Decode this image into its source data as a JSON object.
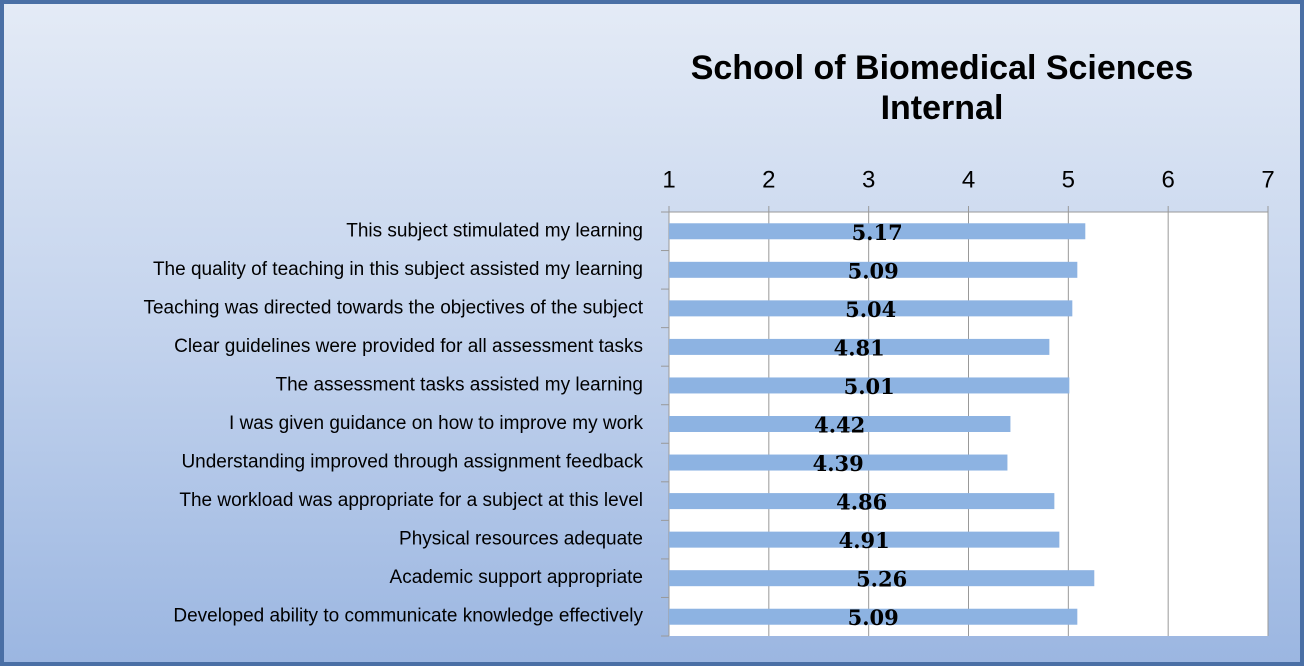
{
  "chart_data": {
    "type": "bar",
    "orientation": "horizontal",
    "title": [
      "School of Biomedical Sciences",
      "Internal"
    ],
    "categories": [
      "This subject stimulated my learning",
      "The quality of teaching in this subject assisted my learning",
      "Teaching was directed towards the objectives of the subject",
      "Clear guidelines were provided for all assessment tasks",
      "The assessment tasks assisted my learning",
      "I was given guidance on how to improve my work",
      "Understanding improved through assignment feedback",
      "The workload was appropriate for a subject at this level",
      "Physical resources adequate",
      "Academic support appropriate",
      "Developed ability to communicate knowledge effectively"
    ],
    "values": [
      5.17,
      5.09,
      5.04,
      4.81,
      5.01,
      4.42,
      4.39,
      4.86,
      4.91,
      5.26,
      5.09
    ],
    "color": "#8db3e2",
    "xlim": [
      1,
      7
    ],
    "xticks": [
      1,
      2,
      3,
      4,
      5,
      6,
      7
    ],
    "grid": true
  }
}
